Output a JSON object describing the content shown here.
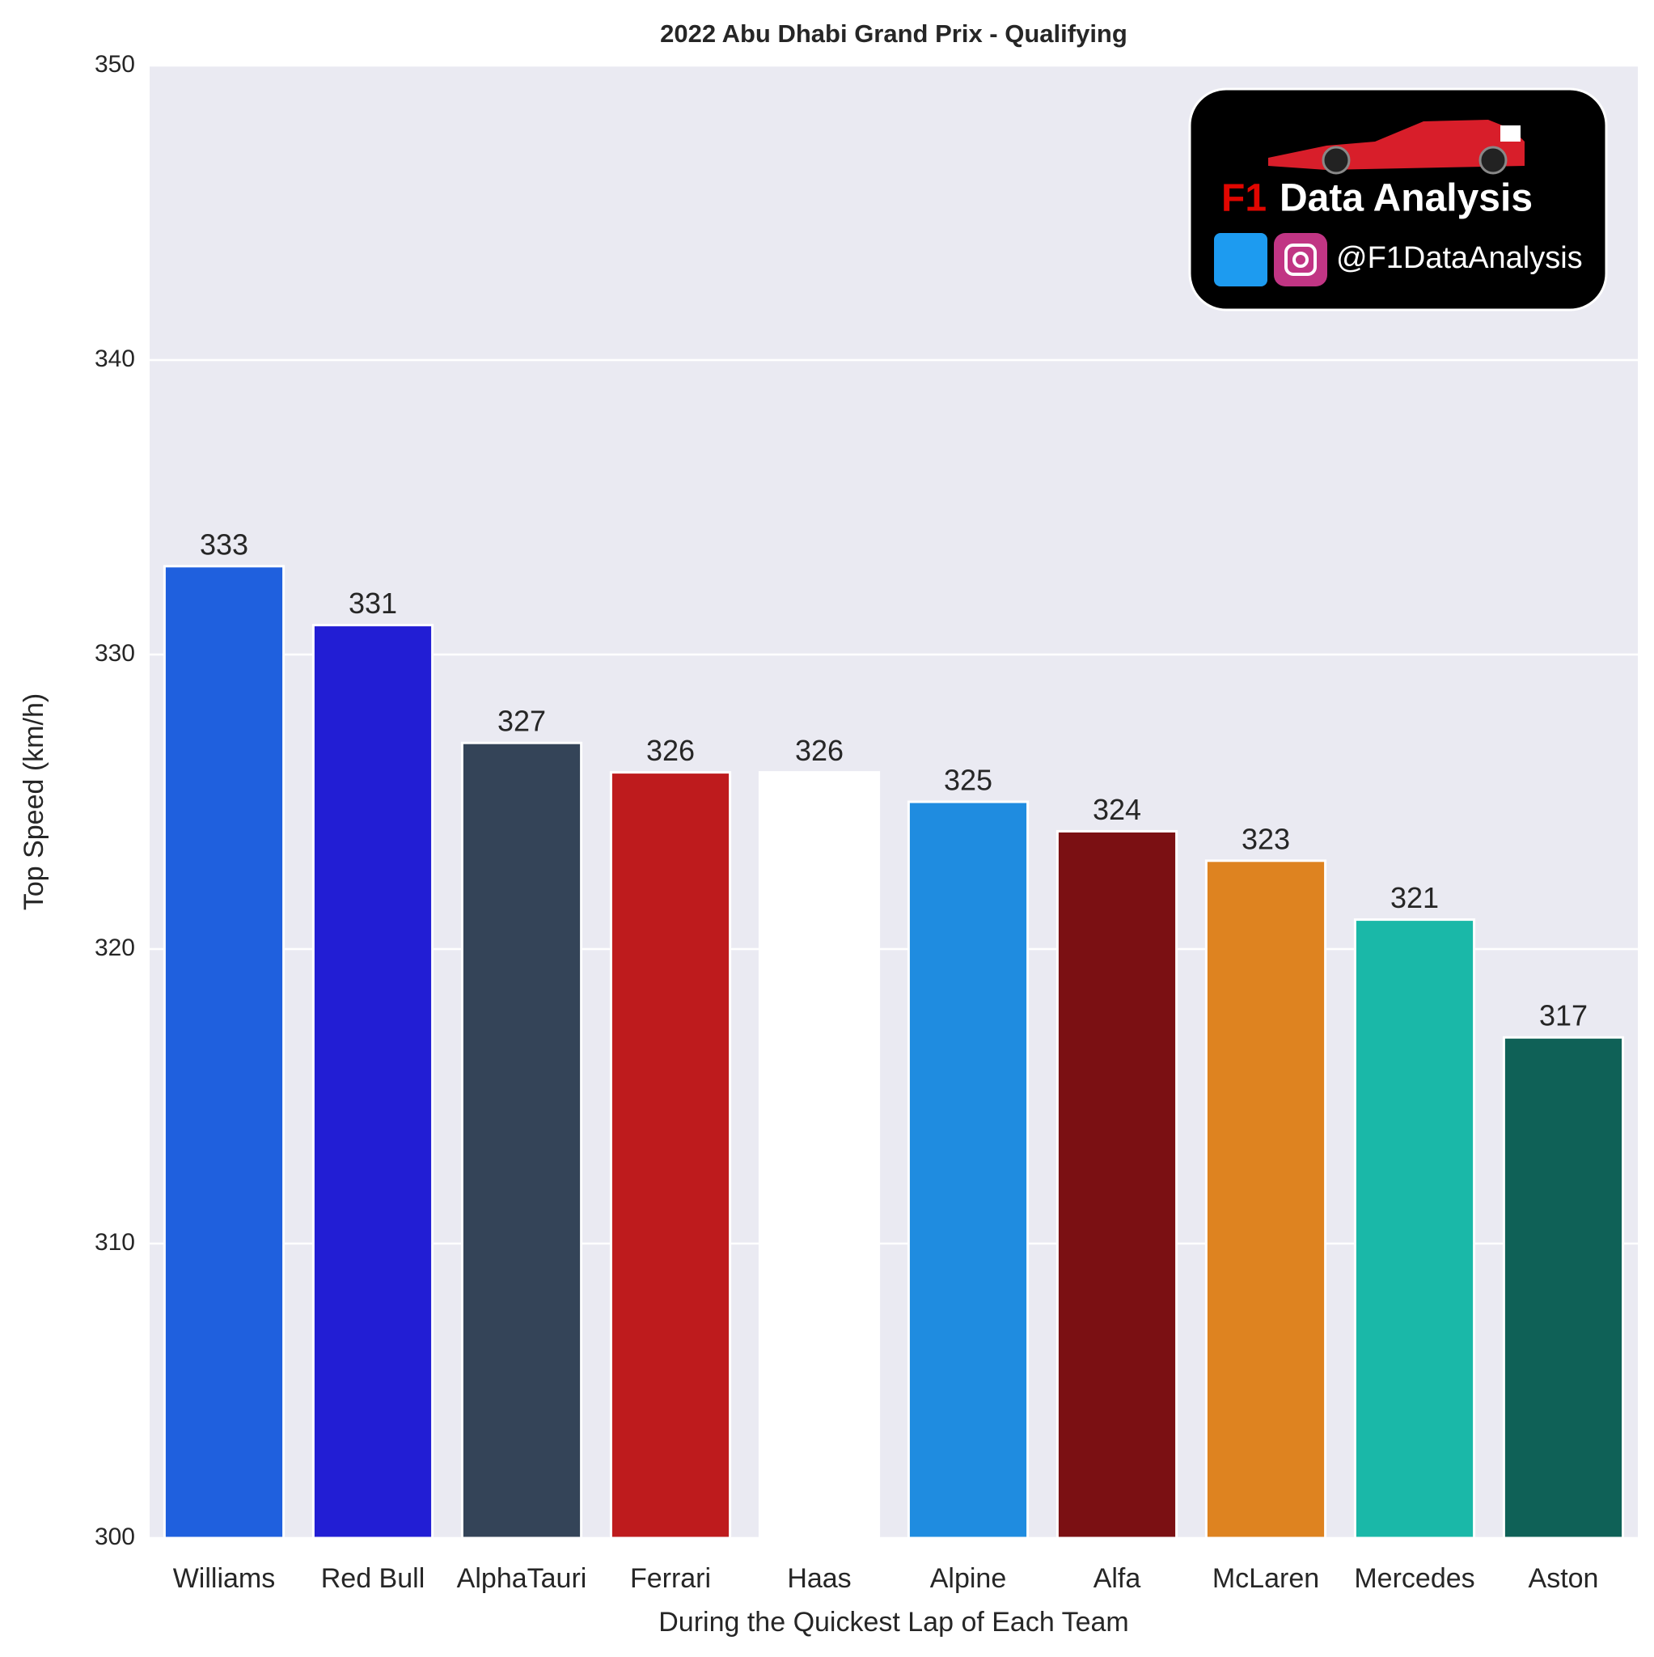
{
  "chart_data": {
    "type": "bar",
    "title": "2022 Abu Dhabi Grand Prix - Qualifying",
    "xlabel": "During the Quickest Lap of Each Team",
    "ylabel": "Top Speed (km/h)",
    "categories": [
      "Williams",
      "Red Bull",
      "AlphaTauri",
      "Ferrari",
      "Haas",
      "Alpine",
      "Alfa",
      "McLaren",
      "Mercedes",
      "Aston"
    ],
    "values": [
      333,
      331,
      327,
      326,
      326,
      325,
      324,
      323,
      321,
      317
    ],
    "colors": [
      "#1f60de",
      "#221ed4",
      "#344458",
      "#be1b1d",
      "#ffffff",
      "#1f8ce0",
      "#7b1013",
      "#de8320",
      "#1ab8a8",
      "#0f6157"
    ],
    "ylim": [
      300,
      350
    ],
    "yticks": [
      300,
      310,
      320,
      330,
      340,
      350
    ],
    "grid": true,
    "logo": {
      "accent": "F1",
      "title": "Data Analysis",
      "handle": "@F1DataAnalysis"
    }
  }
}
